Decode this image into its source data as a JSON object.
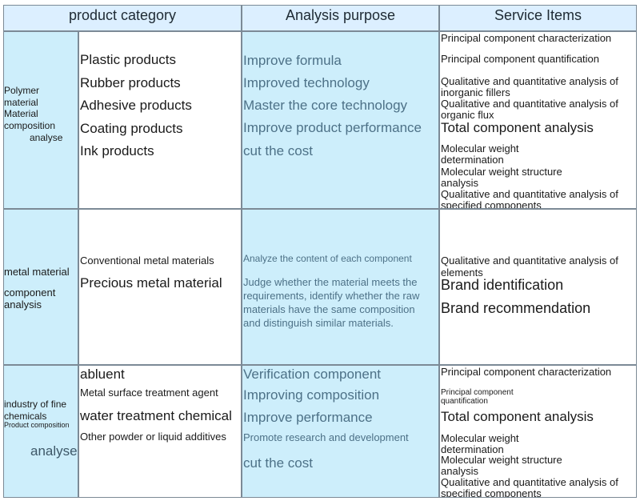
{
  "headers": {
    "category": "product category",
    "purpose": "Analysis purpose",
    "service": "Service Items"
  },
  "rows": [
    {
      "category": [
        "Polymer",
        "material",
        "Material",
        "composition",
        "analyse"
      ],
      "products": [
        "Plastic products",
        "Rubber products",
        "Adhesive products",
        "Coating products",
        "Ink products"
      ],
      "purposes": [
        "Improve formula",
        "Improved technology",
        "Master the core technology",
        "Improve product performance",
        "cut the cost"
      ],
      "services": [
        "Principal component characterization",
        "Principal component quantification",
        "Qualitative and quantitative analysis of inorganic fillers",
        "Qualitative and quantitative analysis of organic flux",
        "Total component analysis",
        "Molecular weight determination",
        "Molecular weight structure analysis",
        "Qualitative and quantitative analysis of specified components"
      ]
    },
    {
      "category": [
        "metal material",
        "component",
        "analysis"
      ],
      "products": [
        "Conventional metal materials",
        "Precious metal material"
      ],
      "purposes": [
        "Analyze the content of each component",
        "Judge whether the material meets the requirements, identify whether the raw materials have the same composition and distinguish similar materials."
      ],
      "services": [
        "Qualitative and quantitative analysis of elements",
        "Brand identification",
        "Brand recommendation"
      ]
    },
    {
      "category": [
        "industry of fine",
        "chemicals",
        "Product composition",
        "analyse"
      ],
      "products": [
        "abluent",
        "Metal surface treatment agent",
        "water treatment chemical",
        "Other powder or liquid additives"
      ],
      "purposes": [
        "Verification component",
        "Improving composition",
        "Improve performance",
        "Promote research and development",
        "cut the cost"
      ],
      "services": [
        "Principal component characterization",
        "Principal component quantification",
        "Total component analysis",
        "Molecular weight determination",
        "Molecular weight structure analysis",
        "Qualitative and quantitative analysis of specified components"
      ]
    }
  ]
}
